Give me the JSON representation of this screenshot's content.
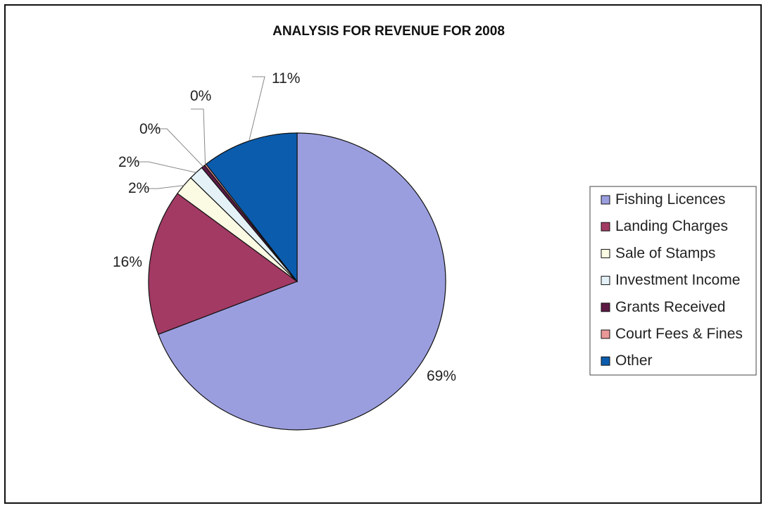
{
  "chart_data": {
    "type": "pie",
    "title": "ANALYSIS FOR REVENUE FOR 2008",
    "legend_position": "right",
    "slices": [
      {
        "label": "Fishing Licences",
        "value": 69.2,
        "display": "69%",
        "color": "#9b9ede"
      },
      {
        "label": "Landing Charges",
        "value": 15.9,
        "display": "16%",
        "color": "#a23a64"
      },
      {
        "label": "Sale of Stamps",
        "value": 2.2,
        "display": "2%",
        "color": "#fbfbe4"
      },
      {
        "label": "Investment Income",
        "value": 1.6,
        "display": "2%",
        "color": "#e4f2f8"
      },
      {
        "label": "Grants Received",
        "value": 0.4,
        "display": "0%",
        "color": "#5c1a45"
      },
      {
        "label": "Court Fees & Fines",
        "value": 0.2,
        "display": "0%",
        "color": "#e99898"
      },
      {
        "label": "Other",
        "value": 10.5,
        "display": "11%",
        "color": "#0b5cad"
      }
    ]
  }
}
